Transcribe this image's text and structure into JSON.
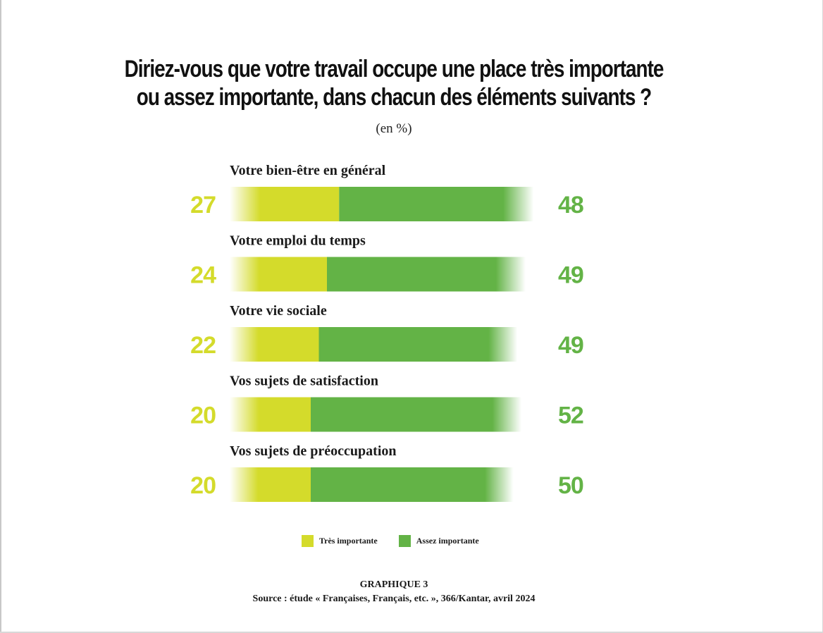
{
  "title_lines": [
    "Diriez-vous que votre travail occupe une place très importante",
    "ou assez importante, dans chacun des éléments suivants ?"
  ],
  "unit": "(en %)",
  "colors": {
    "tres": "#d4db2b",
    "assez": "#63b346"
  },
  "legend": [
    {
      "label": "Très importante",
      "color": "#d4db2b"
    },
    {
      "label": "Assez importante",
      "color": "#63b346"
    }
  ],
  "caption": {
    "label": "GRAPHIQUE 3",
    "source": "Source : étude « Françaises, Français, etc. », 366/Kantar, avril 2024"
  },
  "chart_data": {
    "type": "bar",
    "orientation": "horizontal",
    "stacked": true,
    "categories": [
      "Votre bien-être en général",
      "Votre emploi du temps",
      "Votre vie sociale",
      "Vos sujets de satisfaction",
      "Vos sujets de préoccupation"
    ],
    "series": [
      {
        "name": "Très importante",
        "values": [
          27,
          24,
          22,
          20,
          20
        ]
      },
      {
        "name": "Assez importante",
        "values": [
          48,
          49,
          49,
          52,
          50
        ]
      }
    ],
    "legend_position": "bottom-center",
    "grid": false
  }
}
